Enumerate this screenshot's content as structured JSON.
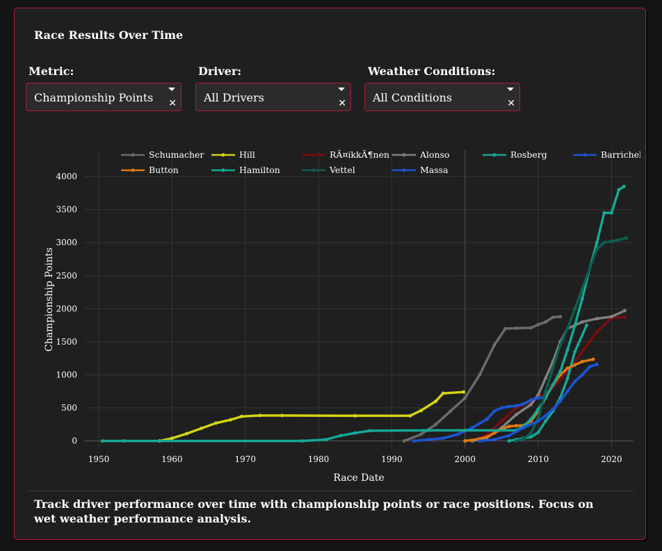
{
  "panel": {
    "title": "Race Results Over Time",
    "description": "Track driver performance over time with championship points or race positions. Focus on wet weather performance analysis."
  },
  "controls": {
    "metric": {
      "label": "Metric:",
      "value": "Championship Points"
    },
    "driver": {
      "label": "Driver:",
      "value": "All Drivers"
    },
    "weather": {
      "label": "Weather Conditions:",
      "value": "All Conditions"
    }
  },
  "icons": {
    "dropdown": "chevron-down-icon",
    "clear": "clear-x-icon"
  },
  "colors": {
    "border": "#b01c33",
    "background": "#1f1f1f",
    "plot_bg": "#1f1f1f"
  },
  "chart_data": {
    "type": "line",
    "title": "",
    "xlabel": "Race Date",
    "ylabel": "Championship Points",
    "xlim": [
      1948,
      2023
    ],
    "ylim": [
      -120,
      4400
    ],
    "x_ticks": [
      1950,
      1960,
      1970,
      1980,
      1990,
      2000,
      2010,
      2020
    ],
    "y_ticks": [
      0,
      500,
      1000,
      1500,
      2000,
      2500,
      3000,
      3500,
      4000
    ],
    "grid": true,
    "legend_position": "top",
    "series": [
      {
        "name": "Schumacher",
        "color": "#6b6b6b",
        "x": [
          1991.7,
          1994,
          1996,
          1998,
          2000,
          2002,
          2004,
          2005.5,
          2007,
          2009,
          2010,
          2011,
          2012,
          2013
        ],
        "y": [
          0,
          100,
          250,
          450,
          650,
          1000,
          1450,
          1700,
          1705,
          1710,
          1760,
          1800,
          1870,
          1880
        ]
      },
      {
        "name": "Hill",
        "color": "#d4d416",
        "x": [
          1958.3,
          1960,
          1962,
          1964,
          1966,
          1968,
          1969.5,
          1972,
          1975,
          1985,
          1992.5,
          1994,
          1996,
          1997,
          1999.8
        ],
        "y": [
          0,
          40,
          110,
          190,
          270,
          320,
          370,
          385,
          385,
          380,
          380,
          460,
          600,
          720,
          740
        ]
      },
      {
        "name": "RÃ¤ikkÃ¶nen",
        "color": "#7a0d10",
        "x": [
          2001,
          2003,
          2005,
          2007,
          2009,
          2010,
          2012,
          2014,
          2016,
          2018,
          2020,
          2021.8
        ],
        "y": [
          0,
          100,
          300,
          500,
          600,
          650,
          800,
          1050,
          1350,
          1650,
          1860,
          1875
        ]
      },
      {
        "name": "Alonso",
        "color": "#808080",
        "x": [
          2001,
          2003,
          2005,
          2007,
          2009,
          2010,
          2011,
          2012,
          2013,
          2014,
          2016,
          2018,
          2020,
          2021.8
        ],
        "y": [
          0,
          50,
          200,
          400,
          550,
          700,
          950,
          1200,
          1500,
          1700,
          1800,
          1850,
          1880,
          1970
        ]
      },
      {
        "name": "Rosberg",
        "color": "#17a796",
        "x": [
          2006,
          2007,
          2008,
          2009,
          2010,
          2011,
          2012,
          2013,
          2014,
          2015,
          2016.6
        ],
        "y": [
          0,
          20,
          40,
          60,
          130,
          300,
          450,
          650,
          950,
          1350,
          1750
        ]
      },
      {
        "name": "Barrichello",
        "color": "#1a55d4",
        "x": [
          1993,
          1995,
          1997,
          1999,
          2001,
          2003,
          2004,
          2005,
          2006,
          2007,
          2008,
          2009,
          2010,
          2011
        ],
        "y": [
          0,
          20,
          40,
          100,
          200,
          330,
          450,
          500,
          520,
          530,
          560,
          620,
          650,
          660
        ]
      },
      {
        "name": "Button",
        "color": "#e07b12",
        "x": [
          2000,
          2002,
          2003,
          2004,
          2005,
          2006,
          2007,
          2008,
          2009,
          2010,
          2011,
          2012,
          2013,
          2014,
          2015,
          2016,
          2017.5
        ],
        "y": [
          0,
          30,
          60,
          120,
          180,
          220,
          230,
          235,
          300,
          450,
          650,
          850,
          1000,
          1100,
          1150,
          1200,
          1235
        ]
      },
      {
        "name": "Hamilton",
        "color": "#17a796",
        "x": [
          1950.5,
          1953.5,
          1977.8,
          1981,
          1983,
          1985,
          1987,
          1995,
          2000,
          2007,
          2008,
          2009,
          2010,
          2011,
          2012,
          2013,
          2014,
          2015,
          2016,
          2017,
          2018,
          2019,
          2020,
          2021,
          2021.7
        ],
        "y": [
          0,
          0,
          0,
          20,
          80,
          120,
          155,
          160,
          160,
          160,
          220,
          330,
          480,
          650,
          850,
          1050,
          1380,
          1750,
          2150,
          2600,
          3000,
          3450,
          3450,
          3800,
          3850
        ]
      },
      {
        "name": "Vettel",
        "color": "#0e5e50",
        "x": [
          2007,
          2008,
          2009,
          2010,
          2011,
          2012,
          2013,
          2014,
          2015,
          2016,
          2017,
          2018,
          2019,
          2020,
          2021,
          2022
        ],
        "y": [
          0,
          30,
          120,
          350,
          750,
          1100,
          1450,
          1700,
          2000,
          2300,
          2600,
          2900,
          3000,
          3020,
          3040,
          3070
        ]
      },
      {
        "name": "Massa",
        "color": "#1a55d4",
        "x": [
          2002,
          2004,
          2006,
          2008,
          2010,
          2011,
          2012,
          2013,
          2014,
          2015,
          2016,
          2017,
          2018
        ],
        "y": [
          0,
          20,
          80,
          200,
          300,
          380,
          480,
          600,
          750,
          900,
          1000,
          1120,
          1160
        ]
      }
    ]
  }
}
